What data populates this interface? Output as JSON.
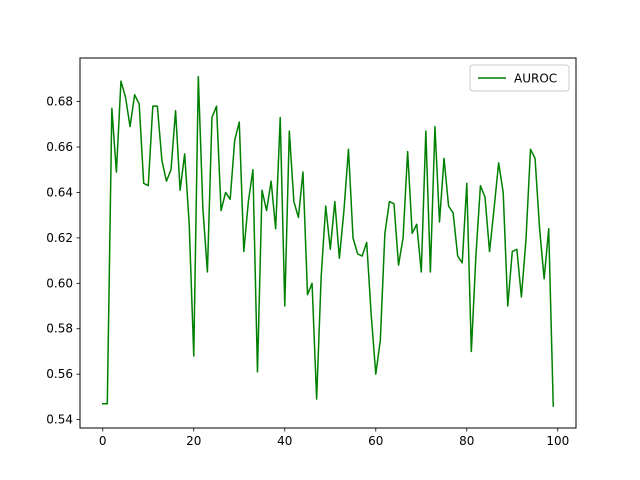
{
  "chart_data": {
    "type": "line",
    "title": "",
    "xlabel": "",
    "ylabel": "",
    "xlim": [
      -5,
      104
    ],
    "ylim": [
      0.5363,
      0.6992
    ],
    "x_ticks": [
      0,
      20,
      40,
      60,
      80,
      100
    ],
    "y_ticks": [
      0.54,
      0.56,
      0.58,
      0.6,
      0.62,
      0.64,
      0.66,
      0.68
    ],
    "grid": false,
    "legend_position": "upper right",
    "series": [
      {
        "name": "AUROC",
        "color": "#008000",
        "x": [
          0,
          1,
          2,
          3,
          4,
          5,
          6,
          7,
          8,
          9,
          10,
          11,
          12,
          13,
          14,
          15,
          16,
          17,
          18,
          19,
          20,
          21,
          22,
          23,
          24,
          25,
          26,
          27,
          28,
          29,
          30,
          31,
          32,
          33,
          34,
          35,
          36,
          37,
          38,
          39,
          40,
          41,
          42,
          43,
          44,
          45,
          46,
          47,
          48,
          49,
          50,
          51,
          52,
          53,
          54,
          55,
          56,
          57,
          58,
          59,
          60,
          61,
          62,
          63,
          64,
          65,
          66,
          67,
          68,
          69,
          70,
          71,
          72,
          73,
          74,
          75,
          76,
          77,
          78,
          79,
          80,
          81,
          82,
          83,
          84,
          85,
          86,
          87,
          88,
          89,
          90,
          91,
          92,
          93,
          94,
          95,
          96,
          97,
          98,
          99
        ],
        "values": [
          0.547,
          0.547,
          0.677,
          0.649,
          0.689,
          0.682,
          0.669,
          0.683,
          0.679,
          0.644,
          0.643,
          0.678,
          0.678,
          0.654,
          0.645,
          0.65,
          0.676,
          0.641,
          0.657,
          0.626,
          0.568,
          0.691,
          0.633,
          0.605,
          0.673,
          0.678,
          0.632,
          0.64,
          0.637,
          0.663,
          0.671,
          0.614,
          0.636,
          0.65,
          0.561,
          0.641,
          0.632,
          0.645,
          0.624,
          0.673,
          0.59,
          0.667,
          0.636,
          0.629,
          0.649,
          0.595,
          0.6,
          0.549,
          0.603,
          0.634,
          0.615,
          0.636,
          0.611,
          0.632,
          0.659,
          0.62,
          0.613,
          0.612,
          0.618,
          0.586,
          0.56,
          0.575,
          0.622,
          0.636,
          0.635,
          0.608,
          0.62,
          0.658,
          0.622,
          0.626,
          0.605,
          0.667,
          0.605,
          0.669,
          0.627,
          0.655,
          0.634,
          0.631,
          0.612,
          0.609,
          0.644,
          0.57,
          0.612,
          0.643,
          0.638,
          0.614,
          0.633,
          0.653,
          0.64,
          0.59,
          0.614,
          0.615,
          0.594,
          0.619,
          0.659,
          0.655,
          0.624,
          0.602,
          0.624,
          0.546
        ]
      }
    ]
  }
}
